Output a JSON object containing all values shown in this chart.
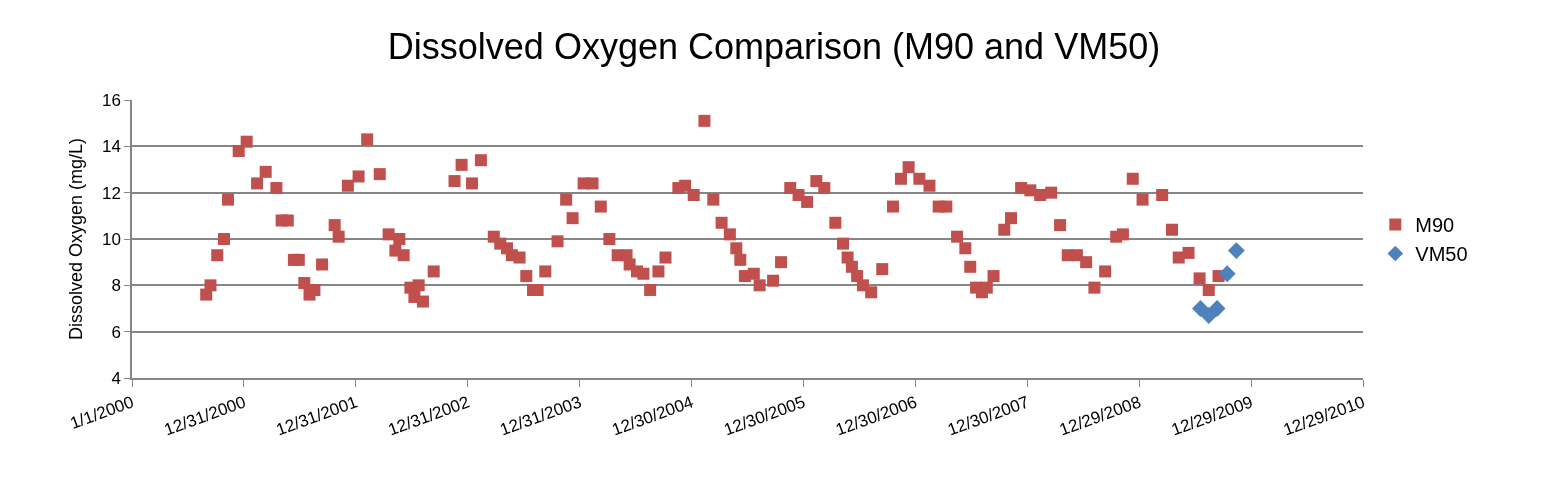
{
  "chart_data": {
    "type": "scatter",
    "title": "Dissolved Oxygen Comparison (M90 and VM50)",
    "ylabel": "Dissolved Oxygen (mg/L)",
    "xlim": [
      "2000-01-01",
      "2010-12-29"
    ],
    "xticks": [
      {
        "value": "2000-01-01",
        "label": "1/1/2000"
      },
      {
        "value": "2000-12-31",
        "label": "12/31/2000"
      },
      {
        "value": "2001-12-31",
        "label": "12/31/2001"
      },
      {
        "value": "2002-12-31",
        "label": "12/31/2002"
      },
      {
        "value": "2003-12-31",
        "label": "12/31/2003"
      },
      {
        "value": "2004-12-30",
        "label": "12/30/2004"
      },
      {
        "value": "2005-12-30",
        "label": "12/30/2005"
      },
      {
        "value": "2006-12-30",
        "label": "12/30/2006"
      },
      {
        "value": "2007-12-30",
        "label": "12/30/2007"
      },
      {
        "value": "2008-12-29",
        "label": "12/29/2008"
      },
      {
        "value": "2009-12-29",
        "label": "12/29/2009"
      },
      {
        "value": "2010-12-29",
        "label": "12/29/2010"
      }
    ],
    "ylim": [
      4,
      16
    ],
    "yticks": [
      4,
      6,
      8,
      10,
      12,
      14,
      16
    ],
    "grid": "y",
    "legend": "right",
    "series": [
      {
        "name": "M90",
        "color": "#c0504d",
        "marker": "square",
        "x": [
          "2000-08-30",
          "2000-09-13",
          "2000-10-05",
          "2000-10-27",
          "2000-11-09",
          "2000-12-14",
          "2001-01-09",
          "2001-02-12",
          "2001-03-12",
          "2001-04-16",
          "2001-05-03",
          "2001-05-23",
          "2001-06-12",
          "2001-06-28",
          "2001-07-16",
          "2001-08-02",
          "2001-08-18",
          "2001-09-12",
          "2001-10-23",
          "2001-11-05",
          "2001-12-05",
          "2002-01-09",
          "2002-02-06",
          "2002-03-19",
          "2002-04-17",
          "2002-05-09",
          "2002-05-22",
          "2002-06-05",
          "2002-06-27",
          "2002-07-10",
          "2002-07-24",
          "2002-08-07",
          "2002-09-11",
          "2002-11-18",
          "2002-12-11",
          "2003-01-14",
          "2003-02-12",
          "2003-03-26",
          "2003-04-16",
          "2003-05-08",
          "2003-05-24",
          "2003-06-18",
          "2003-07-10",
          "2003-08-01",
          "2003-08-16",
          "2003-09-10",
          "2003-10-20",
          "2003-11-17",
          "2003-12-08",
          "2004-01-13",
          "2004-02-11",
          "2004-03-09",
          "2004-04-06",
          "2004-05-03",
          "2004-06-01",
          "2004-06-11",
          "2004-07-05",
          "2004-07-26",
          "2004-08-17",
          "2004-09-13",
          "2004-10-06",
          "2004-11-17",
          "2004-12-09",
          "2005-01-06",
          "2005-02-10",
          "2005-03-11",
          "2005-04-07",
          "2005-05-04",
          "2005-05-25",
          "2005-06-07",
          "2005-06-22",
          "2005-07-21",
          "2005-08-09",
          "2005-09-22",
          "2005-10-18",
          "2005-11-17",
          "2005-12-14",
          "2006-01-11",
          "2006-02-10",
          "2006-03-08",
          "2006-04-13",
          "2006-05-08",
          "2006-05-23",
          "2006-06-06",
          "2006-06-23",
          "2006-07-12",
          "2006-08-08",
          "2006-09-13",
          "2006-10-18",
          "2006-11-13",
          "2006-12-08",
          "2007-01-12",
          "2007-02-14",
          "2007-03-16",
          "2007-04-10",
          "2007-05-15",
          "2007-06-11",
          "2007-06-27",
          "2007-07-16",
          "2007-08-04",
          "2007-08-20",
          "2007-09-11",
          "2007-10-16",
          "2007-11-07",
          "2007-12-10",
          "2008-01-09",
          "2008-02-10",
          "2008-03-17",
          "2008-04-15",
          "2008-05-10",
          "2008-06-09",
          "2008-07-09",
          "2008-08-05",
          "2008-09-09",
          "2008-10-15",
          "2008-11-06",
          "2008-12-08",
          "2009-01-09",
          "2009-03-14",
          "2009-04-15",
          "2009-05-07",
          "2009-06-08",
          "2009-07-14",
          "2009-08-13",
          "2009-09-14"
        ],
        "values": [
          7.6,
          8.0,
          9.3,
          10.0,
          11.7,
          13.8,
          14.2,
          12.4,
          12.9,
          12.2,
          10.8,
          10.8,
          9.1,
          9.1,
          8.1,
          7.6,
          7.8,
          8.9,
          10.6,
          10.1,
          12.3,
          12.7,
          14.3,
          12.8,
          10.2,
          9.5,
          10.0,
          9.3,
          7.9,
          7.5,
          8.0,
          7.3,
          8.6,
          12.5,
          13.2,
          12.4,
          13.4,
          10.1,
          9.8,
          9.6,
          9.3,
          9.2,
          8.4,
          7.8,
          7.8,
          8.6,
          9.9,
          11.7,
          10.9,
          12.4,
          12.4,
          11.4,
          10.0,
          9.3,
          9.3,
          8.9,
          8.6,
          8.5,
          7.8,
          8.6,
          9.2,
          12.2,
          12.3,
          11.9,
          15.1,
          11.7,
          10.7,
          10.2,
          9.6,
          9.1,
          8.4,
          8.5,
          8.0,
          8.2,
          9.0,
          12.2,
          11.9,
          11.6,
          12.5,
          12.2,
          10.7,
          9.8,
          9.2,
          8.8,
          8.4,
          8.0,
          7.7,
          8.7,
          11.4,
          12.6,
          13.1,
          12.6,
          12.3,
          11.4,
          11.4,
          10.1,
          9.6,
          8.8,
          7.9,
          7.7,
          7.9,
          8.4,
          10.4,
          10.9,
          12.2,
          12.1,
          11.9,
          12.0,
          10.6,
          9.3,
          9.3,
          9.0,
          7.9,
          8.6,
          10.1,
          10.2,
          12.6,
          11.7,
          11.9,
          10.4,
          9.2,
          9.4,
          8.3,
          7.8,
          8.4
        ]
      },
      {
        "name": "VM50",
        "color": "#4f81bd",
        "marker": "diamond",
        "x": [
          "2009-07-17",
          "2009-08-13",
          "2009-09-09",
          "2009-10-12",
          "2009-11-11"
        ],
        "values": [
          7.0,
          6.7,
          7.0,
          8.5,
          9.5
        ]
      }
    ]
  }
}
